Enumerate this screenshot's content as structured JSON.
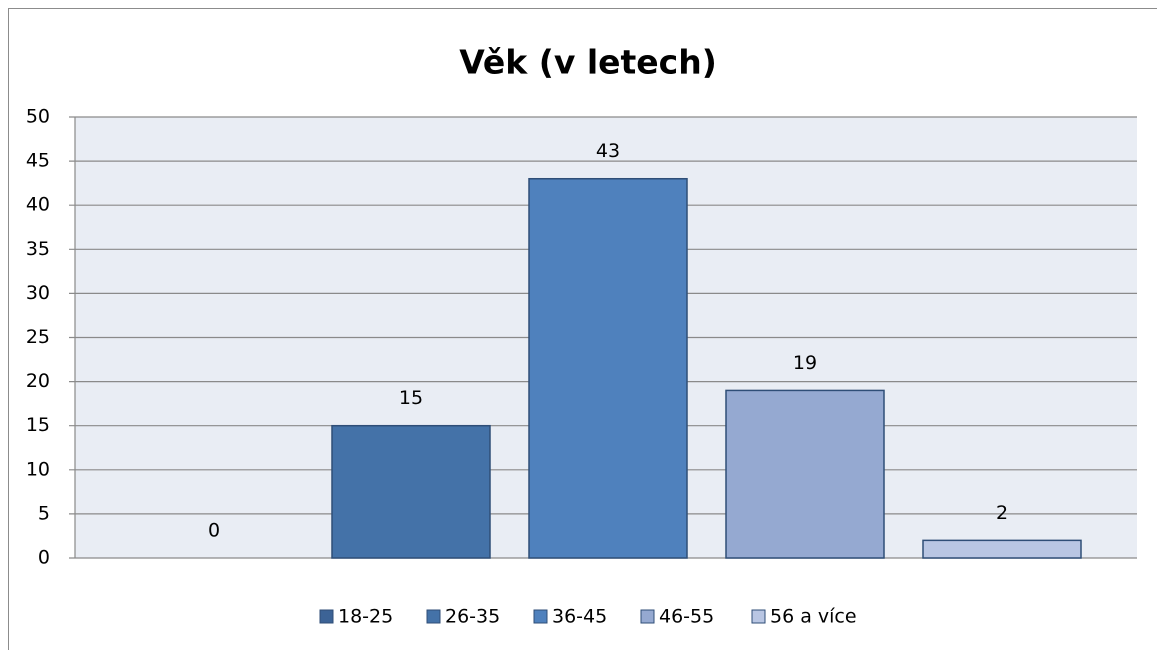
{
  "chart_data": {
    "type": "bar",
    "title": "Věk (v letech)",
    "categories": [
      "18-25",
      "26-35",
      "36-45",
      "46-55",
      "56 a více"
    ],
    "values": [
      0,
      15,
      43,
      19,
      2
    ],
    "colors": [
      "#3c6396",
      "#4472a8",
      "#4f81bd",
      "#95a9d1",
      "#b9c6e3"
    ],
    "ylim": [
      0,
      50
    ],
    "yticks": [
      0,
      5,
      10,
      15,
      20,
      25,
      30,
      35,
      40,
      45,
      50
    ],
    "grid": true,
    "legend": "bottom"
  }
}
